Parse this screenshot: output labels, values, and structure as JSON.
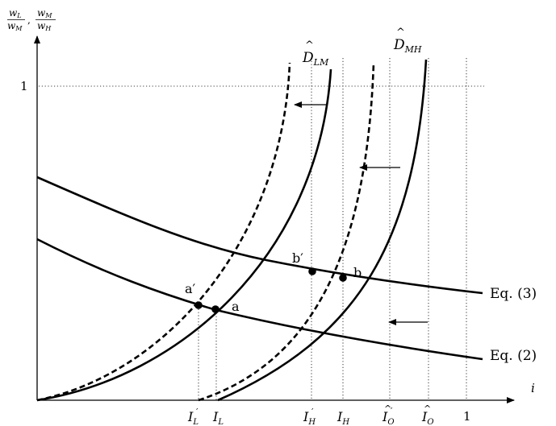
{
  "axes": {
    "x_label": "i",
    "y_label": {
      "frac1_num": "w",
      "frac1_num_sub": "L",
      "frac1_den": "w",
      "frac1_den_sub": "M",
      "separator": ",",
      "frac2_num": "w",
      "frac2_num_sub": "M",
      "frac2_den": "w",
      "frac2_den_sub": "H"
    },
    "y_tick_one": "1",
    "x_tick_one": "1"
  },
  "curves": {
    "d_lm": {
      "hat": "^",
      "base": "D",
      "sub": "LM"
    },
    "d_mh": {
      "hat": "^",
      "base": "D",
      "sub": "MH"
    },
    "eq3": "Eq.  (3)",
    "eq2": "Eq.  (2)"
  },
  "points": {
    "a": "a",
    "a_prime": "a′",
    "b": "b",
    "b_prime": "b′"
  },
  "x_ticks": {
    "il_prime": {
      "base": "I",
      "sub": "L",
      "prime": "′"
    },
    "il": {
      "base": "I",
      "sub": "L"
    },
    "ih_prime": {
      "base": "I",
      "sub": "H",
      "prime": "′"
    },
    "ih": {
      "base": "I",
      "sub": "H"
    },
    "io_prime": {
      "hat": "^",
      "base": "I",
      "sub": "O",
      "prime": "′"
    },
    "io": {
      "hat": "^",
      "base": "I",
      "sub": "O"
    }
  },
  "colors": {
    "ink": "#000000",
    "background": "#ffffff"
  }
}
